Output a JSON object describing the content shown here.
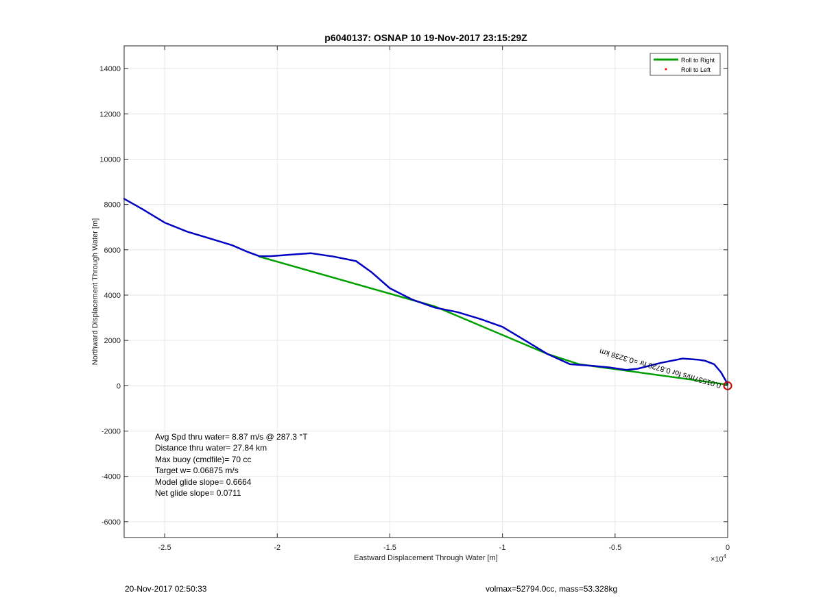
{
  "chart_data": {
    "type": "line",
    "title": "p6040137: OSNAP 10 19-Nov-2017 23:15:29Z",
    "xlabel": "Eastward Displacement Through Water [m]",
    "ylabel": "Northward Displacement Through Water [m]",
    "x_exponent_label": "×10",
    "x_exponent_power": "4",
    "xlim": [
      -26800,
      0
    ],
    "ylim": [
      -6700,
      15000
    ],
    "x_ticks": [
      -25000,
      -20000,
      -15000,
      -10000,
      -5000,
      0
    ],
    "x_tick_labels": [
      "-2.5",
      "-2",
      "-1.5",
      "-1",
      "-0.5",
      "0"
    ],
    "y_ticks": [
      -6000,
      -4000,
      -2000,
      0,
      2000,
      4000,
      6000,
      8000,
      10000,
      12000,
      14000
    ],
    "y_tick_labels": [
      "-6000",
      "-4000",
      "-2000",
      "0",
      "2000",
      "4000",
      "6000",
      "8000",
      "10000",
      "12000",
      "14000"
    ],
    "grid": true,
    "legend_position": "top-right",
    "series": [
      {
        "name": "Roll to Right",
        "color": "#00a000",
        "x": [
          0,
          -6600,
          -8000,
          -13000,
          -20800
        ],
        "y": [
          50,
          950,
          1400,
          3500,
          5700
        ]
      },
      {
        "name": "Roll to Left",
        "color": "#ff0000",
        "x": [],
        "y": []
      },
      {
        "name": "",
        "color": "#0000c0",
        "x": [
          0,
          -300,
          -600,
          -1000,
          -1300,
          -2000,
          -3000,
          -4000,
          -4500,
          -5200,
          -6000,
          -7000,
          -8000,
          -9000,
          -10000,
          -11000,
          -12000,
          -13000,
          -14000,
          -15000,
          -15800,
          -16500,
          -17500,
          -18500,
          -19500,
          -20300,
          -20800,
          -21300,
          -22000,
          -23000,
          -24000,
          -25000,
          -26000,
          -26800
        ],
        "y": [
          80,
          600,
          950,
          1100,
          1150,
          1200,
          1000,
          750,
          700,
          800,
          880,
          950,
          1400,
          2000,
          2600,
          2950,
          3250,
          3450,
          3800,
          4300,
          5000,
          5500,
          5700,
          5850,
          5780,
          5720,
          5720,
          5900,
          6200,
          6500,
          6800,
          7200,
          7800,
          8250
        ]
      }
    ],
    "marker": {
      "x": 0,
      "y": 0,
      "color": "#cc0000"
    },
    "segment_label": "0.01537m/s for 0.8720 hr =0.3238 km",
    "annotations": [
      "Avg Spd thru water=  8.87 m/s @ 287.3 °T",
      "Distance thru water= 27.84 km",
      "Max buoy (cmdfile)= 70 cc",
      "Target w= 0.06875 m/s",
      "Model glide slope= 0.6664",
      "Net glide slope= 0.0711"
    ]
  },
  "footer": {
    "timestamp": "20-Nov-2017 02:50:33",
    "info": "volmax=52794.0cc, mass=53.328kg"
  }
}
